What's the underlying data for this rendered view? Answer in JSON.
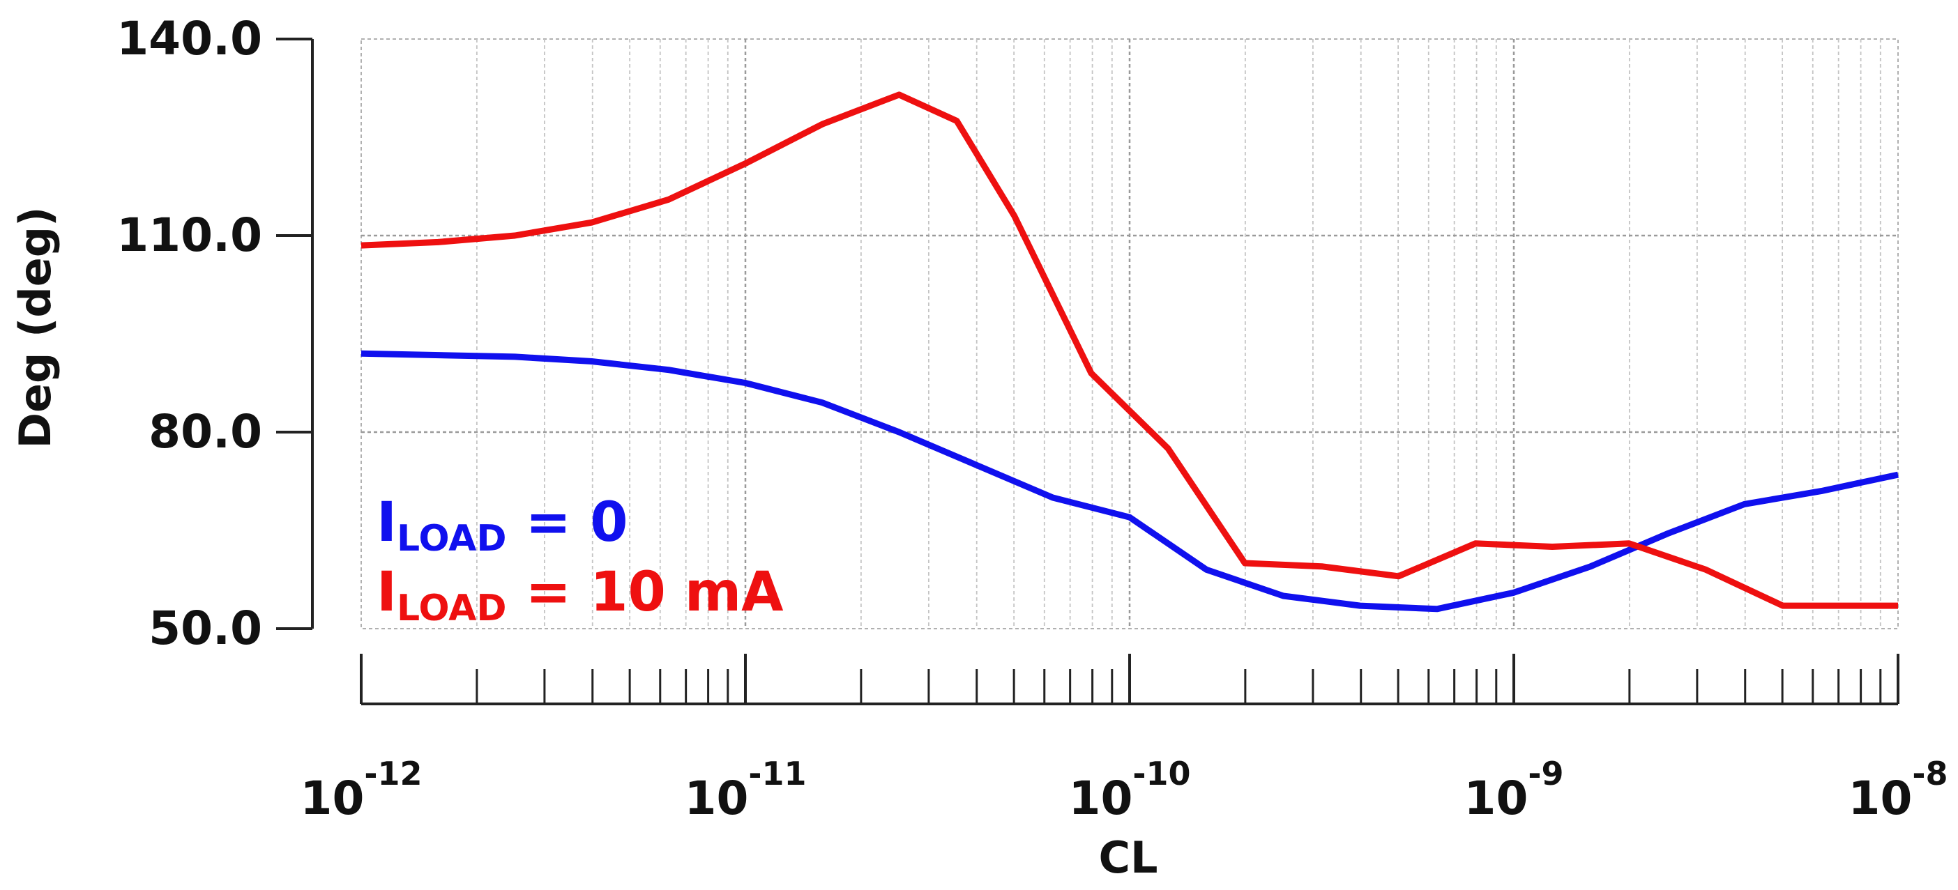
{
  "chart_data": {
    "type": "line",
    "title": "",
    "xlabel": "CL",
    "ylabel": "Deg (deg)",
    "xscale": "log",
    "xlim_exp": [
      -12,
      -8
    ],
    "ylim": [
      50,
      140
    ],
    "grid": true,
    "y_ticks": [
      {
        "value": 50,
        "label": "50.0"
      },
      {
        "value": 80,
        "label": "80.0"
      },
      {
        "value": 110,
        "label": "110.0"
      },
      {
        "value": 140,
        "label": "140.0"
      }
    ],
    "x_ticks": [
      {
        "exp": -12,
        "base": "10",
        "power": "-12"
      },
      {
        "exp": -11,
        "base": "10",
        "power": "-11"
      },
      {
        "exp": -10,
        "base": "10",
        "power": "-10"
      },
      {
        "exp": -9,
        "base": "10",
        "power": "-9"
      },
      {
        "exp": -8,
        "base": "10",
        "power": "-8"
      }
    ],
    "series": [
      {
        "name": "I_LOAD = 0",
        "color": "#1010ee",
        "log_x": [
          -12,
          -11.6,
          -11.4,
          -11.2,
          -11.0,
          -10.8,
          -10.6,
          -10.4,
          -10.2,
          -10.0,
          -9.8,
          -9.6,
          -9.4,
          -9.2,
          -9.0,
          -8.8,
          -8.6,
          -8.4,
          -8.2,
          -8.0
        ],
        "y": [
          92,
          91.5,
          90.8,
          89.5,
          87.5,
          84.5,
          80,
          75,
          70,
          67,
          59,
          55,
          53.5,
          53,
          55.5,
          59.5,
          64.5,
          69,
          71,
          73.5
        ]
      },
      {
        "name": "I_LOAD = 10 mA",
        "color": "#ee1010",
        "log_x": [
          -12,
          -11.8,
          -11.6,
          -11.4,
          -11.2,
          -11.0,
          -10.8,
          -10.6,
          -10.45,
          -10.3,
          -10.1,
          -9.9,
          -9.7,
          -9.5,
          -9.3,
          -9.1,
          -8.9,
          -8.7,
          -8.5,
          -8.3,
          -8.0
        ],
        "y": [
          108.5,
          109,
          110,
          112,
          115.5,
          121,
          127,
          131.5,
          127.5,
          113,
          89,
          77.5,
          60,
          59.5,
          58,
          63,
          62.5,
          63,
          59,
          53.5,
          53.5
        ]
      }
    ],
    "legend": [
      {
        "main": "I",
        "sub": "LOAD",
        "rest": " = 0",
        "color": "#1010ee"
      },
      {
        "main": "I",
        "sub": "LOAD",
        "rest": " = 10 mA",
        "color": "#ee1010"
      }
    ],
    "legend_position": "bottom-left"
  }
}
